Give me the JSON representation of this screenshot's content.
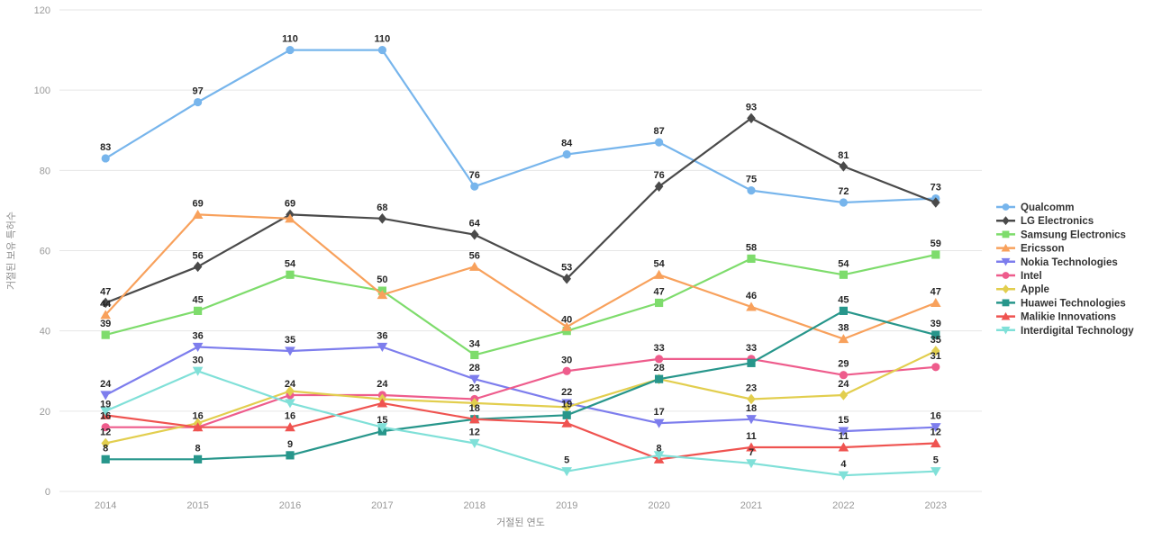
{
  "chart_data": {
    "type": "line",
    "title": "",
    "xlabel": "거절된 연도",
    "ylabel": "거절된 보유 특허수",
    "x": [
      "2014",
      "2015",
      "2016",
      "2017",
      "2018",
      "2019",
      "2020",
      "2021",
      "2022",
      "2023"
    ],
    "ylim": [
      0,
      120
    ],
    "yticks": [
      0,
      20,
      40,
      60,
      80,
      100,
      120
    ],
    "grid": true,
    "legend_position": "right",
    "series": [
      {
        "name": "Qualcomm",
        "color": "#77b5ec",
        "marker": "circle",
        "values": [
          83,
          97,
          110,
          110,
          76,
          84,
          87,
          75,
          72,
          73
        ],
        "label_shown": [
          true,
          true,
          true,
          true,
          true,
          true,
          true,
          true,
          true,
          true
        ]
      },
      {
        "name": "LG Electronics",
        "color": "#4a4a4a",
        "marker": "diamond",
        "values": [
          47,
          56,
          69,
          68,
          64,
          53,
          76,
          93,
          81,
          72
        ],
        "label_shown": [
          true,
          true,
          true,
          true,
          true,
          true,
          true,
          true,
          true,
          false
        ]
      },
      {
        "name": "Samsung Electronics",
        "color": "#7edc6c",
        "marker": "square",
        "values": [
          39,
          45,
          54,
          50,
          34,
          40,
          47,
          58,
          54,
          59
        ],
        "label_shown": [
          true,
          true,
          true,
          true,
          true,
          true,
          true,
          true,
          true,
          true
        ]
      },
      {
        "name": "Ericsson",
        "color": "#f8a15c",
        "marker": "triangle-up",
        "values": [
          44,
          69,
          68,
          49,
          56,
          41,
          54,
          46,
          38,
          47
        ],
        "label_shown": [
          true,
          true,
          false,
          false,
          true,
          false,
          true,
          true,
          true,
          true
        ]
      },
      {
        "name": "Nokia Technologies",
        "color": "#7d7ded",
        "marker": "triangle-down",
        "values": [
          24,
          36,
          35,
          36,
          28,
          22,
          17,
          18,
          15,
          16
        ],
        "label_shown": [
          true,
          true,
          true,
          true,
          true,
          true,
          true,
          true,
          true,
          true
        ]
      },
      {
        "name": "Intel",
        "color": "#ee5c8c",
        "marker": "circle",
        "values": [
          16,
          16,
          24,
          24,
          23,
          30,
          33,
          33,
          29,
          31
        ],
        "label_shown": [
          true,
          true,
          true,
          true,
          true,
          true,
          true,
          true,
          true,
          true
        ]
      },
      {
        "name": "Apple",
        "color": "#e2ce4e",
        "marker": "diamond",
        "values": [
          12,
          17,
          25,
          23,
          22,
          21,
          28,
          23,
          24,
          35
        ],
        "label_shown": [
          true,
          false,
          false,
          false,
          false,
          false,
          false,
          true,
          true,
          true
        ]
      },
      {
        "name": "Huawei Technologies",
        "color": "#27968b",
        "marker": "square",
        "values": [
          8,
          8,
          9,
          15,
          18,
          19,
          28,
          32,
          45,
          39
        ],
        "label_shown": [
          true,
          true,
          true,
          true,
          true,
          true,
          true,
          false,
          true,
          true
        ]
      },
      {
        "name": "Malikie Innovations",
        "color": "#ef5350",
        "marker": "triangle-up",
        "values": [
          19,
          16,
          16,
          22,
          18,
          17,
          8,
          11,
          11,
          12
        ],
        "label_shown": [
          true,
          false,
          true,
          false,
          false,
          false,
          true,
          true,
          true,
          true
        ]
      },
      {
        "name": "Interdigital Technology",
        "color": "#80e0d8",
        "marker": "triangle-down",
        "values": [
          20,
          30,
          22,
          16,
          12,
          5,
          9,
          7,
          4,
          5
        ],
        "label_shown": [
          false,
          true,
          false,
          false,
          true,
          true,
          false,
          true,
          true,
          true
        ]
      }
    ]
  }
}
